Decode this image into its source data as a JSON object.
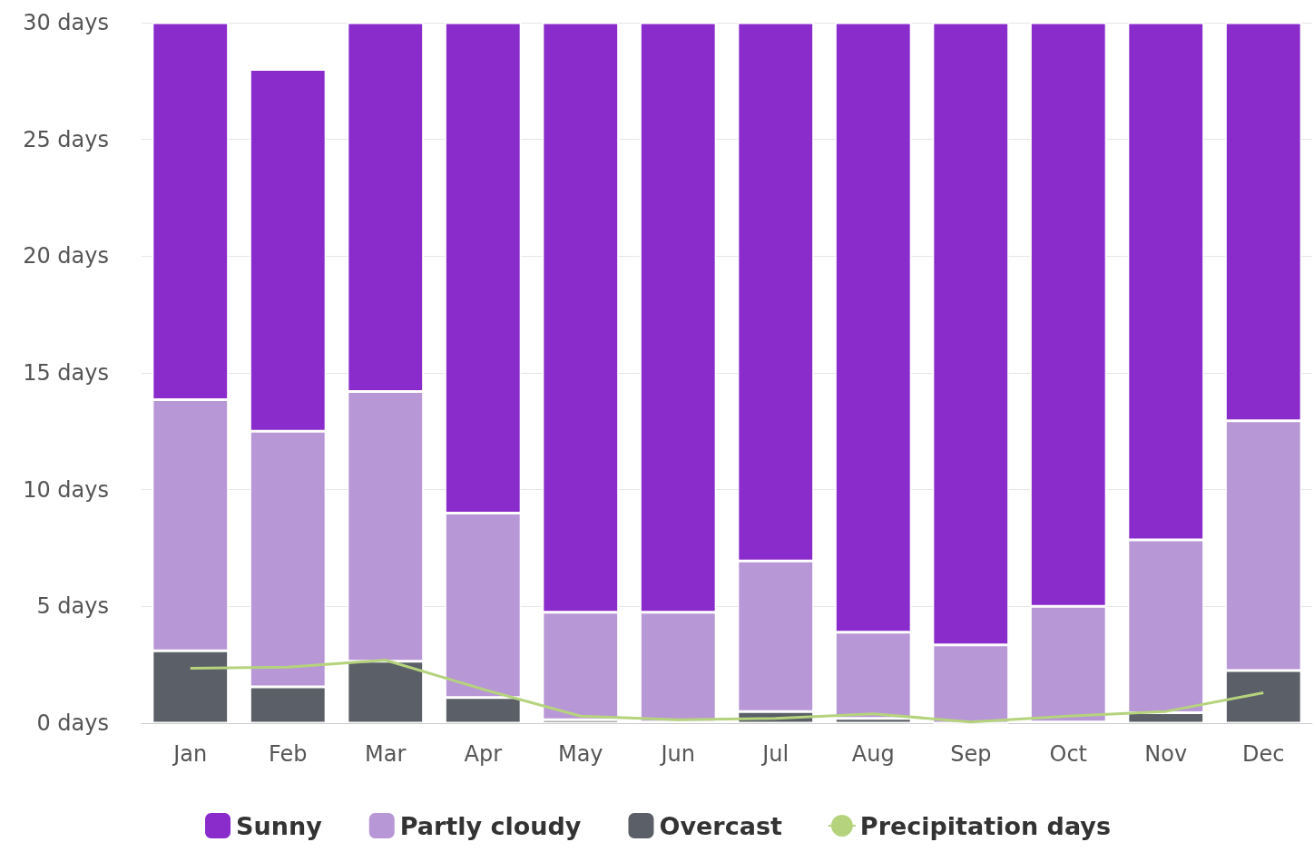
{
  "chart_data": {
    "type": "bar",
    "stacked": true,
    "categories": [
      "Jan",
      "Feb",
      "Mar",
      "Apr",
      "May",
      "Jun",
      "Jul",
      "Aug",
      "Sep",
      "Oct",
      "Nov",
      "Dec"
    ],
    "series": [
      {
        "name": "Overcast",
        "color": "#5b5f67",
        "values": [
          3.1,
          1.55,
          2.65,
          1.1,
          0.15,
          0.05,
          0.5,
          0.2,
          0,
          0.05,
          0.45,
          2.25
        ]
      },
      {
        "name": "Partly cloudy",
        "color": "#b897d6",
        "values": [
          10.75,
          10.95,
          11.55,
          7.9,
          4.6,
          4.7,
          6.45,
          3.7,
          3.35,
          4.95,
          7.4,
          10.7
        ]
      },
      {
        "name": "Sunny",
        "color": "#8a2bcb",
        "values": [
          16.15,
          15.5,
          15.8,
          21.0,
          25.25,
          25.25,
          23.05,
          26.1,
          26.65,
          25.0,
          22.15,
          17.05
        ]
      },
      {
        "name": "Precipitation days",
        "type": "line",
        "color": "#b5d37d",
        "values": [
          2.35,
          2.4,
          2.7,
          1.45,
          0.3,
          0.15,
          0.2,
          0.4,
          0.05,
          0.3,
          0.5,
          1.3
        ]
      }
    ],
    "ylim": [
      0,
      30
    ],
    "yticks": [
      {
        "value": 0,
        "label": "0 days"
      },
      {
        "value": 5,
        "label": "5 days"
      },
      {
        "value": 10,
        "label": "10 days"
      },
      {
        "value": 15,
        "label": "15 days"
      },
      {
        "value": 20,
        "label": "20 days"
      },
      {
        "value": 25,
        "label": "25 days"
      },
      {
        "value": 30,
        "label": "30 days"
      }
    ],
    "grid": "y",
    "legend": "bottom",
    "marker": "none"
  }
}
